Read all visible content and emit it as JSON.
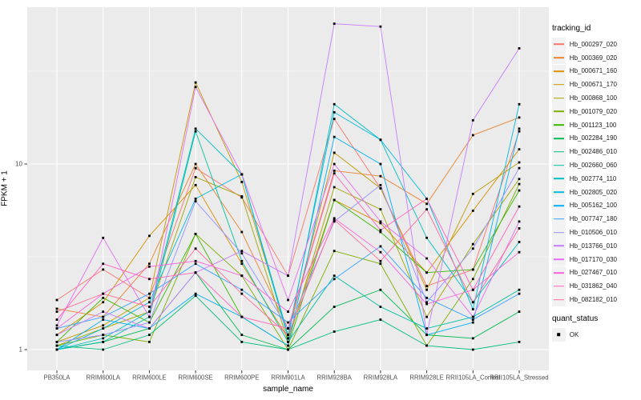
{
  "chart_data": {
    "type": "line",
    "title": "",
    "xlabel": "sample_name",
    "ylabel": "FPKM + 1",
    "y_scale": "log10",
    "y_ticks": [
      1,
      10
    ],
    "y_tick_labels": [
      "1",
      "10"
    ],
    "y_minor_ticks": [
      3.162,
      31.62
    ],
    "ylim": [
      0.77,
      70
    ],
    "grid": true,
    "panel_bg": "#EBEBEB",
    "grid_color": "#FFFFFF",
    "marker": {
      "shape": "square",
      "color": "#000000"
    },
    "legend_position": "right",
    "categories": [
      "PB350LA",
      "RRIM600LA",
      "RRIM600LE",
      "RRIM600SE",
      "RRIM600PE",
      "RRIM901LA",
      "RRIM928BA",
      "RRIM928LA",
      "RRIM928LE",
      "RRII105LA_Control",
      "RRII105LA_Stressed"
    ],
    "series": [
      {
        "name": "Hb_000297_020",
        "color": "#F8766D",
        "values": [
          1.85,
          2.7,
          1.9,
          9.5,
          6.6,
          2.5,
          17.5,
          7.4,
          2.2,
          2.7,
          15.0
        ]
      },
      {
        "name": "Hb_000369_020",
        "color": "#EA8331",
        "values": [
          1.66,
          1.5,
          2.9,
          10.0,
          4.3,
          1.3,
          9.2,
          8.6,
          6.1,
          14.3,
          17.8
        ]
      },
      {
        "name": "Hb_000671_160",
        "color": "#D89000",
        "values": [
          1.2,
          1.8,
          4.1,
          7.7,
          2.9,
          1.15,
          6.4,
          4.8,
          2.6,
          5.6,
          12.0
        ]
      },
      {
        "name": "Hb_000671_170",
        "color": "#C09B00",
        "values": [
          1.1,
          1.35,
          1.9,
          27.5,
          8.0,
          1.2,
          11.5,
          7.4,
          2.1,
          6.9,
          10.2
        ]
      },
      {
        "name": "Hb_000868_100",
        "color": "#A3A500",
        "values": [
          1.05,
          1.3,
          1.6,
          8.5,
          6.7,
          1.1,
          7.5,
          5.7,
          1.5,
          3.7,
          8.3
        ]
      },
      {
        "name": "Hb_001079_020",
        "color": "#7CAE00",
        "values": [
          1.05,
          1.2,
          1.1,
          4.2,
          2.5,
          1.0,
          3.4,
          2.9,
          1.05,
          2.4,
          7.8
        ]
      },
      {
        "name": "Hb_001123_100",
        "color": "#39B600",
        "values": [
          1.1,
          1.9,
          1.4,
          4.2,
          1.5,
          1.05,
          6.4,
          4.3,
          2.6,
          2.7,
          7.2
        ]
      },
      {
        "name": "Hb_002284_190",
        "color": "#00BB4E",
        "values": [
          1.0,
          1.1,
          1.3,
          2.6,
          1.2,
          1.0,
          1.7,
          2.1,
          1.2,
          1.15,
          1.6
        ]
      },
      {
        "name": "Hb_002486_010",
        "color": "#00BF7D",
        "values": [
          1.05,
          1.0,
          1.2,
          1.95,
          1.1,
          1.0,
          1.25,
          1.45,
          1.05,
          1.0,
          1.1
        ]
      },
      {
        "name": "Hb_002660_060",
        "color": "#00C1A3",
        "values": [
          1.0,
          1.1,
          1.5,
          15.0,
          3.0,
          1.1,
          2.5,
          1.7,
          1.3,
          1.5,
          2.1
        ]
      },
      {
        "name": "Hb_002774_110",
        "color": "#00BFC4",
        "values": [
          1.0,
          1.15,
          1.6,
          15.5,
          8.8,
          1.15,
          21.0,
          13.5,
          4.0,
          1.8,
          3.8
        ]
      },
      {
        "name": "Hb_002805_020",
        "color": "#00BAE0",
        "values": [
          1.0,
          1.3,
          1.8,
          6.5,
          8.8,
          1.2,
          19.0,
          13.5,
          6.5,
          1.65,
          21.0
        ]
      },
      {
        "name": "Hb_005162_100",
        "color": "#00B0F6",
        "values": [
          1.0,
          1.45,
          1.3,
          2.0,
          1.5,
          1.05,
          14.0,
          10.0,
          1.2,
          1.4,
          15.5
        ]
      },
      {
        "name": "Hb_007747_180",
        "color": "#35A2FF",
        "values": [
          1.3,
          1.5,
          2.0,
          2.9,
          2.1,
          1.4,
          2.4,
          3.6,
          1.9,
          1.45,
          2.0
        ]
      },
      {
        "name": "Hb_010506_010",
        "color": "#9590FF",
        "values": [
          1.1,
          1.2,
          1.4,
          6.3,
          3.3,
          1.3,
          4.9,
          7.7,
          1.8,
          3.5,
          9.5
        ]
      },
      {
        "name": "Hb_013766_010",
        "color": "#C77CFF",
        "values": [
          1.2,
          1.6,
          1.3,
          2.6,
          3.4,
          2.5,
          57.0,
          55.0,
          1.2,
          17.2,
          42.0
        ]
      },
      {
        "name": "Hb_017170_030",
        "color": "#E76BF3",
        "values": [
          1.35,
          4.0,
          1.5,
          26.0,
          8.8,
          1.85,
          10.0,
          4.9,
          3.1,
          1.5,
          4.9
        ]
      },
      {
        "name": "Hb_027467_010",
        "color": "#FA62DB",
        "values": [
          1.3,
          2.0,
          2.8,
          3.0,
          2.5,
          1.6,
          5.1,
          3.35,
          1.76,
          2.1,
          3.35
        ]
      },
      {
        "name": "Hb_031862_040",
        "color": "#FF62BC",
        "values": [
          1.45,
          2.9,
          2.4,
          2.6,
          1.5,
          1.3,
          8.9,
          4.4,
          6.5,
          2.1,
          5.9
        ]
      },
      {
        "name": "Hb_082182_010",
        "color": "#FF6A98",
        "values": [
          1.6,
          2.0,
          1.7,
          3.5,
          2.0,
          1.2,
          5.0,
          3.0,
          5.7,
          1.8,
          4.5
        ]
      }
    ]
  },
  "legend": {
    "tracking_title": "tracking_id",
    "quant_title": "quant_status",
    "quant_items": [
      {
        "label": "OK"
      }
    ],
    "key_bg": "#F2F2F2"
  }
}
